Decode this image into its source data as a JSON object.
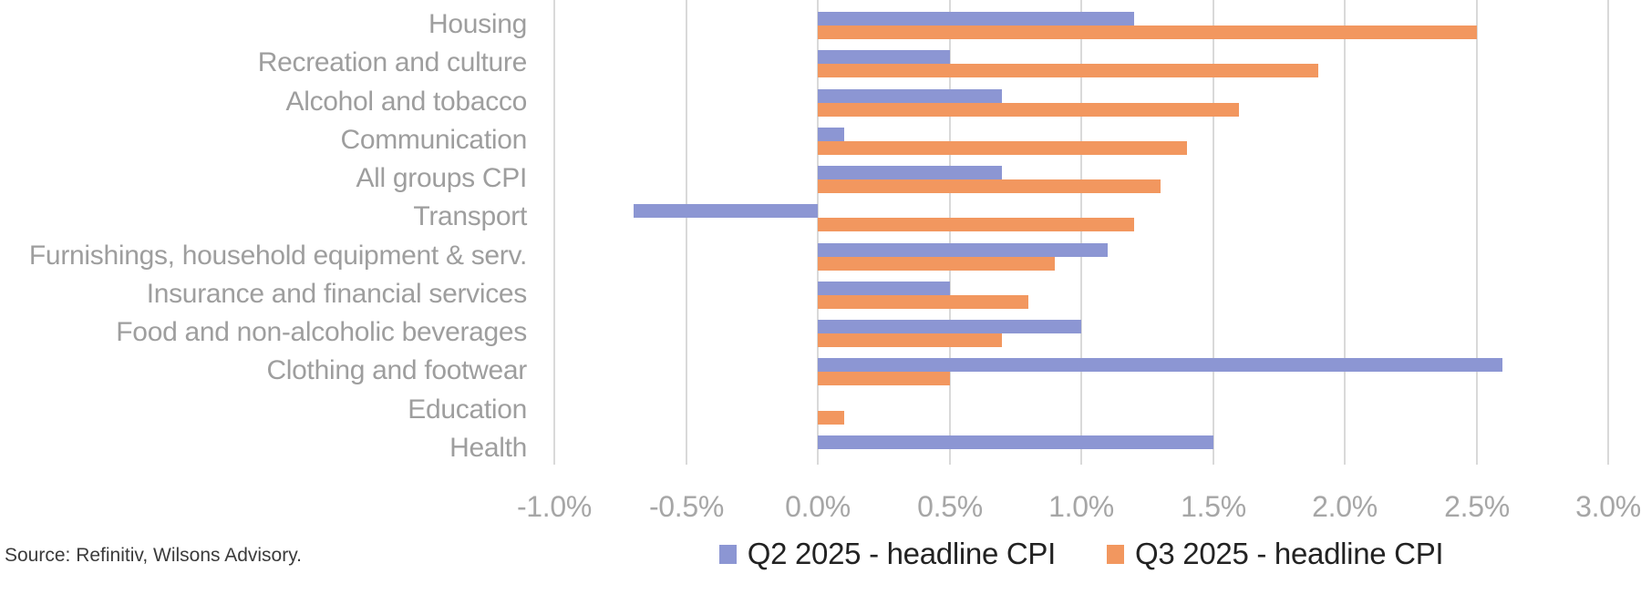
{
  "chart_data": {
    "type": "bar",
    "orientation": "horizontal",
    "title": "",
    "xlabel": "",
    "ylabel": "",
    "categories": [
      "Housing",
      "Recreation and culture",
      "Alcohol and tobacco",
      "Communication",
      "All groups CPI",
      "Transport",
      "Furnishings, household equipment & serv.",
      "Insurance and financial services",
      "Food and non-alcoholic beverages",
      "Clothing and footwear",
      "Education",
      "Health"
    ],
    "series": [
      {
        "name": "Q2 2025 - headline CPI",
        "color": "#8C96D3",
        "values": [
          1.2,
          0.5,
          0.7,
          0.1,
          0.7,
          -0.7,
          1.1,
          0.5,
          1.0,
          2.6,
          0.0,
          1.5
        ]
      },
      {
        "name": "Q3 2025 - headline CPI",
        "color": "#F2975F",
        "values": [
          2.5,
          1.9,
          1.6,
          1.4,
          1.3,
          1.2,
          0.9,
          0.8,
          0.7,
          0.5,
          0.1,
          0.0
        ]
      }
    ],
    "xlim": [
      -1.0,
      3.0
    ],
    "x_ticks": [
      "-1.0%",
      "-0.5%",
      "0.0%",
      "0.5%",
      "1.0%",
      "1.5%",
      "2.0%",
      "2.5%",
      "3.0%"
    ],
    "x_tick_values": [
      -1.0,
      -0.5,
      0.0,
      0.5,
      1.0,
      1.5,
      2.0,
      2.5,
      3.0
    ],
    "grid": true,
    "legend_position": "bottom"
  },
  "colors": {
    "gridline": "#d9d9d9",
    "category_label": "#9e9e9e",
    "axis_label": "#a6a6a6",
    "legend_text": "#222222",
    "source_text": "#3b3b3b"
  },
  "footer": {
    "source": "Source: Refinitiv, Wilsons Advisory."
  }
}
